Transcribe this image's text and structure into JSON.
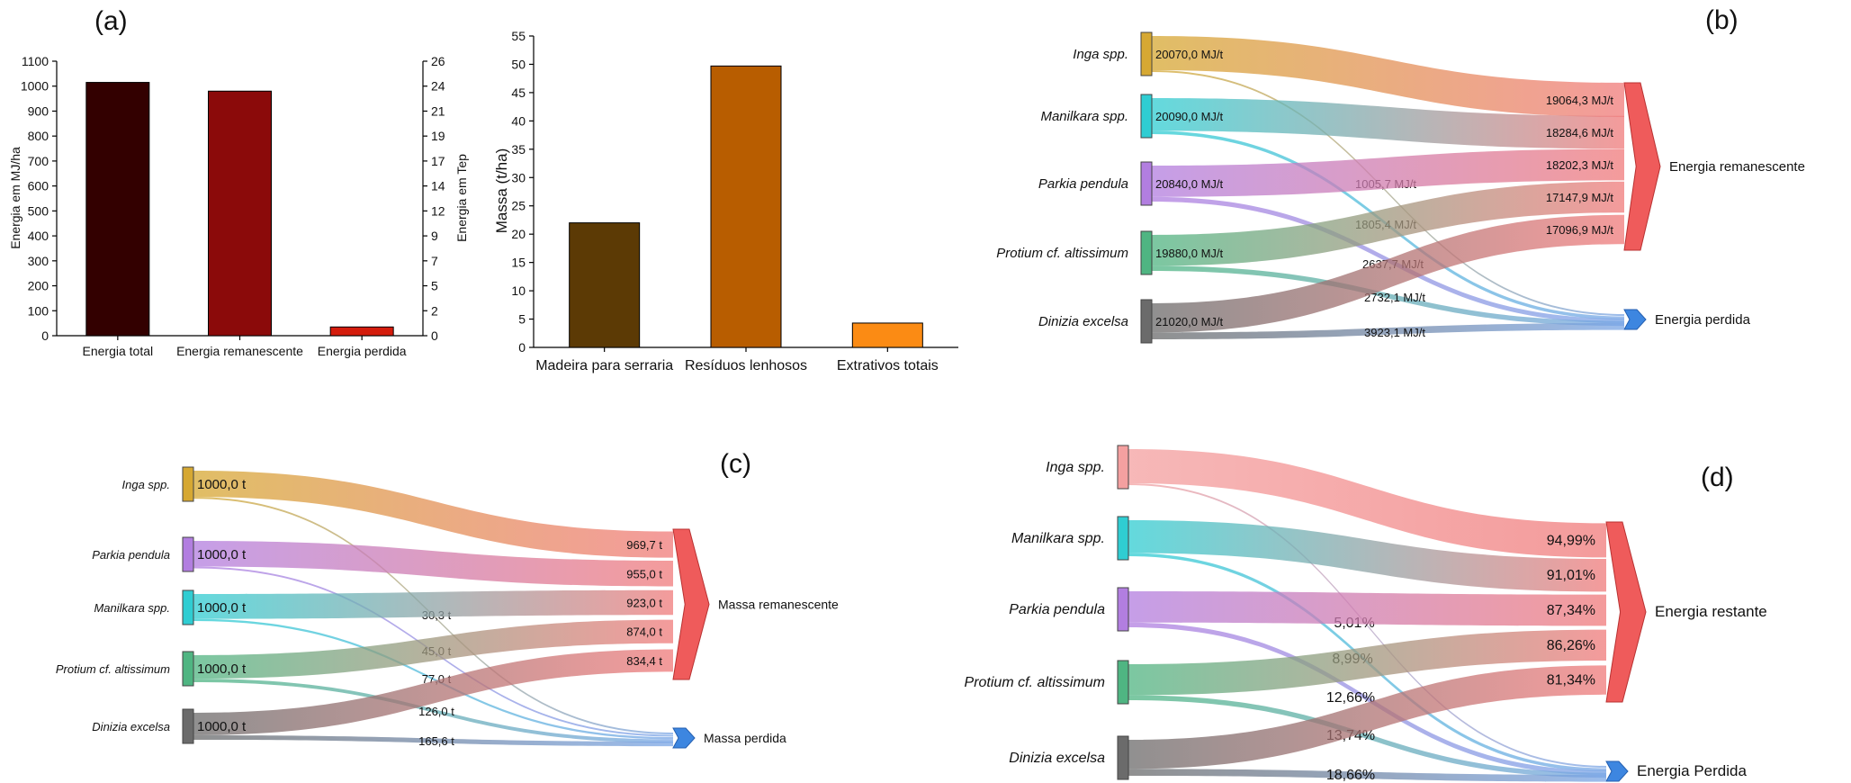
{
  "panels": {
    "a": "(a)",
    "b": "(b)",
    "c": "(c)",
    "d": "(d)"
  },
  "chart_data": [
    {
      "id": "energy",
      "type": "bar",
      "categories": [
        "Energia total",
        "Energia remanescente",
        "Energia perdida"
      ],
      "values": [
        1015,
        980,
        35
      ],
      "ylabel": "Energia em MJ/ha",
      "y2label": "Energia em Tep",
      "ylim": [
        0,
        1100
      ],
      "yticks": [
        "0",
        "100",
        "200",
        "300",
        "400",
        "500",
        "600",
        "700",
        "800",
        "900",
        "1000",
        "1100"
      ],
      "y2ticks": [
        "0",
        "2",
        "5",
        "7",
        "9",
        "12",
        "14",
        "17",
        "19",
        "21",
        "24",
        "26"
      ],
      "colors": [
        "#330000",
        "#8b0a0a",
        "#d41c0c"
      ]
    },
    {
      "id": "mass",
      "type": "bar",
      "categories": [
        "Madeira para serraria",
        "Resíduos lenhosos",
        "Extrativos totais"
      ],
      "values": [
        22,
        49.7,
        4.3
      ],
      "ylabel": "Massa (t/ha)",
      "ylim": [
        0,
        55
      ],
      "yticks": [
        "0",
        "5",
        "10",
        "15",
        "20",
        "25",
        "30",
        "35",
        "40",
        "45",
        "50",
        "55"
      ],
      "colors": [
        "#5c3a05",
        "#b85d00",
        "#fb8b14"
      ]
    },
    {
      "id": "b",
      "type": "sankey",
      "sources": [
        {
          "name": "Inga spp.",
          "value": "20070,0 MJ/t",
          "color": "#d6a832"
        },
        {
          "name": "Manilkara spp.",
          "value": "20090,0 MJ/t",
          "color": "#2fcdd2"
        },
        {
          "name": "Parkia pendula",
          "value": "20840,0 MJ/t",
          "color": "#b27ee0"
        },
        {
          "name": "Protium cf. altissimum",
          "value": "19880,0 MJ/t",
          "color": "#4fb582"
        },
        {
          "name": "Dinizia excelsa",
          "value": "21020,0 MJ/t",
          "color": "#6b6b6b"
        }
      ],
      "targets": [
        "Energia remanescente",
        "Energia perdida"
      ],
      "remain_labels": [
        "19064,3 MJ/t",
        "18284,6 MJ/t",
        "18202,3 MJ/t",
        "17147,9 MJ/t",
        "17096,9 MJ/t"
      ],
      "lost_labels": [
        "1005,7 MJ/t",
        "1805,4 MJ/t",
        "2637,7 MJ/t",
        "2732,1 MJ/t",
        "3923,1 MJ/t"
      ]
    },
    {
      "id": "c",
      "type": "sankey",
      "sources": [
        {
          "name": "Inga spp.",
          "value": "1000,0 t",
          "color": "#d6a832"
        },
        {
          "name": "Parkia pendula",
          "value": "1000,0 t",
          "color": "#b27ee0"
        },
        {
          "name": "Manilkara spp.",
          "value": "1000,0 t",
          "color": "#2fcdd2"
        },
        {
          "name": "Protium cf. altissimum",
          "value": "1000,0 t",
          "color": "#4fb582"
        },
        {
          "name": "Dinizia excelsa",
          "value": "1000,0 t",
          "color": "#6b6b6b"
        }
      ],
      "targets": [
        "Massa remanescente",
        "Massa perdida"
      ],
      "remain_labels": [
        "969,7 t",
        "955,0 t",
        "923,0 t",
        "874,0 t",
        "834,4 t"
      ],
      "lost_labels": [
        "30,3 t",
        "45,0 t",
        "77,0 t",
        "126,0 t",
        "165,6 t"
      ]
    },
    {
      "id": "d",
      "type": "sankey",
      "sources": [
        {
          "name": "Inga spp.",
          "value": "",
          "color": "#f4a0a0"
        },
        {
          "name": "Manilkara spp.",
          "value": "",
          "color": "#2fcdd2"
        },
        {
          "name": "Parkia pendula",
          "value": "",
          "color": "#b27ee0"
        },
        {
          "name": "Protium cf. altissimum",
          "value": "",
          "color": "#4fb582"
        },
        {
          "name": "Dinizia excelsa",
          "value": "",
          "color": "#6b6b6b"
        }
      ],
      "targets": [
        "Energia restante",
        "Energia Perdida"
      ],
      "remain_labels": [
        "94,99%",
        "91,01%",
        "87,34%",
        "86,26%",
        "81,34%"
      ],
      "lost_labels": [
        "5,01%",
        "8,99%",
        "12,66%",
        "13,74%",
        "18,66%"
      ]
    }
  ]
}
